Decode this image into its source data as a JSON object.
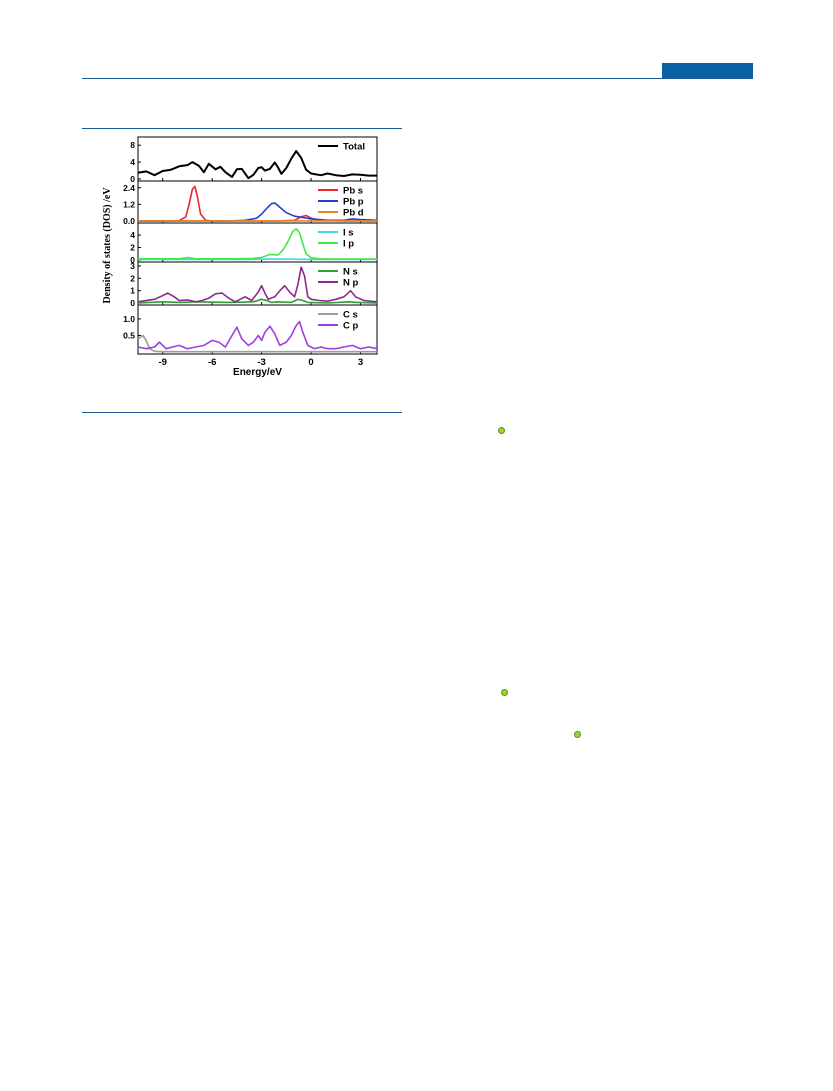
{
  "header": {
    "accent_color": "#0b5fa5"
  },
  "figure": {
    "ylabel": "Density of states (DOS) /eV",
    "xlabel": "Energy/eV"
  },
  "markers": [
    {
      "icon": "green-dot-icon"
    },
    {
      "icon": "green-dot-icon"
    },
    {
      "icon": "green-dot-icon"
    }
  ],
  "chart_data": {
    "type": "line",
    "xlabel": "Energy/eV",
    "ylabel": "Density of states (DOS) /eV",
    "xlim": [
      -10.5,
      4
    ],
    "xticks": [
      -9,
      -6,
      -3,
      0,
      3
    ],
    "grid": false,
    "panels": [
      {
        "ylim": [
          0,
          9
        ],
        "yticks": [
          0,
          4,
          8
        ],
        "yticklabels": [
          "0",
          "4",
          "8"
        ],
        "legend_position": "top-right",
        "series": [
          {
            "name": "Total",
            "color": "#000000",
            "x": [
              -10.5,
              -10,
              -9.5,
              -9,
              -8.5,
              -8,
              -7.5,
              -7.2,
              -6.8,
              -6.5,
              -6.2,
              -5.8,
              -5.5,
              -5.2,
              -4.8,
              -4.5,
              -4.2,
              -3.8,
              -3.5,
              -3.2,
              -3,
              -2.8,
              -2.5,
              -2.2,
              -2,
              -1.8,
              -1.5,
              -1.2,
              -0.9,
              -0.6,
              -0.3,
              0,
              0.3,
              0.6,
              1,
              1.5,
              2,
              2.5,
              3,
              3.5,
              4
            ],
            "y": [
              1.5,
              1.8,
              0.9,
              1.9,
              2.2,
              3,
              3.3,
              4,
              3.1,
              1.6,
              3.6,
              2.3,
              2.9,
              1.6,
              0.5,
              2.3,
              2.4,
              0.2,
              1,
              2.6,
              2.8,
              2,
              2.4,
              3.9,
              2.7,
              1.2,
              2.6,
              4.8,
              6.6,
              5,
              2.2,
              1.3,
              1.1,
              0.9,
              1.3,
              0.9,
              0.7,
              1.1,
              1,
              0.8,
              0.8
            ]
          }
        ]
      },
      {
        "ylim": [
          0,
          2.6
        ],
        "yticks": [
          0,
          1.2,
          2.4
        ],
        "yticklabels": [
          "0.0",
          "1.2",
          "2.4"
        ],
        "legend_position": "top-right",
        "series": [
          {
            "name": "Pb s",
            "color": "#e8282b",
            "x": [
              -10.5,
              -8.5,
              -8,
              -7.6,
              -7.4,
              -7.2,
              -7.05,
              -6.9,
              -6.7,
              -6.4,
              -6,
              -4,
              -2,
              -1,
              -0.6,
              -0.3,
              0,
              0.5,
              2,
              4
            ],
            "y": [
              0,
              0,
              0.02,
              0.3,
              1.2,
              2.3,
              2.5,
              1.8,
              0.5,
              0.05,
              0,
              0,
              0,
              0.05,
              0.3,
              0.4,
              0.2,
              0.05,
              0,
              0
            ]
          },
          {
            "name": "Pb p",
            "color": "#1f3fd9",
            "x": [
              -10.5,
              -5,
              -4,
              -3.3,
              -3,
              -2.7,
              -2.4,
              -2.2,
              -1.9,
              -1.5,
              -1,
              -0.5,
              0,
              1,
              2,
              2.5,
              3,
              4
            ],
            "y": [
              0,
              0,
              0.05,
              0.2,
              0.5,
              0.9,
              1.25,
              1.3,
              1,
              0.6,
              0.35,
              0.25,
              0.15,
              0.05,
              0.05,
              0.15,
              0.1,
              0.05
            ]
          },
          {
            "name": "Pb d",
            "color": "#f0851e",
            "x": [
              -10.5,
              -5,
              -2.5,
              0,
              2,
              4
            ],
            "y": [
              0.01,
              0.01,
              0.01,
              0.01,
              0.01,
              0.01
            ]
          }
        ]
      },
      {
        "ylim": [
          0,
          5.3
        ],
        "yticks": [
          0,
          2,
          4
        ],
        "yticklabels": [
          "0",
          "2",
          "4"
        ],
        "legend_position": "top-right",
        "series": [
          {
            "name": "I s",
            "color": "#3fd6f2",
            "x": [
              -10.5,
              -4,
              -2.5,
              -1.5,
              0,
              4
            ],
            "y": [
              0.1,
              0.1,
              0.15,
              0.15,
              0.1,
              0.1
            ]
          },
          {
            "name": "I p",
            "color": "#42e845",
            "x": [
              -10.5,
              -8,
              -7.5,
              -7,
              -5,
              -3.5,
              -3,
              -2.5,
              -2,
              -1.7,
              -1.4,
              -1.1,
              -0.9,
              -0.7,
              -0.5,
              -0.3,
              0,
              0.5,
              1,
              2,
              4
            ],
            "y": [
              0.2,
              0.2,
              0.4,
              0.2,
              0.2,
              0.25,
              0.4,
              0.9,
              0.8,
              1.6,
              3,
              4.6,
              5,
              4.4,
              2.6,
              1,
              0.35,
              0.2,
              0.15,
              0.15,
              0.15
            ]
          }
        ]
      },
      {
        "ylim": [
          0,
          3
        ],
        "yticks": [
          0,
          1,
          2,
          3
        ],
        "yticklabels": [
          "0",
          "1",
          "2",
          "3"
        ],
        "legend_position": "top-right",
        "series": [
          {
            "name": "N s",
            "color": "#2e9e35",
            "x": [
              -10.5,
              -9,
              -8,
              -7,
              -5,
              -3.5,
              -3,
              -2.7,
              -2.4,
              -2,
              -1.2,
              -0.8,
              -0.5,
              -0.2,
              1,
              2.3,
              2.8,
              4
            ],
            "y": [
              0,
              0.1,
              0.05,
              0.1,
              0.05,
              0.1,
              0.3,
              0.2,
              0.05,
              0.1,
              0.05,
              0.3,
              0.2,
              0.05,
              0,
              0.1,
              0.05,
              0
            ]
          },
          {
            "name": "N p",
            "color": "#8b2a8e",
            "x": [
              -10.5,
              -9.5,
              -9,
              -8.7,
              -8.3,
              -8,
              -7.5,
              -7,
              -6.6,
              -6.2,
              -5.8,
              -5.4,
              -5,
              -4.6,
              -4.3,
              -4,
              -3.6,
              -3.2,
              -3,
              -2.8,
              -2.6,
              -2.2,
              -1.9,
              -1.6,
              -1.3,
              -1,
              -0.8,
              -0.6,
              -0.4,
              -0.2,
              0,
              0.5,
              1,
              1.5,
              2,
              2.4,
              2.7,
              3.2,
              4
            ],
            "y": [
              0.1,
              0.3,
              0.6,
              0.8,
              0.5,
              0.2,
              0.25,
              0.1,
              0.2,
              0.4,
              0.75,
              0.8,
              0.4,
              0.1,
              0.3,
              0.5,
              0.2,
              0.9,
              1.4,
              0.8,
              0.3,
              0.5,
              1,
              1.4,
              0.9,
              0.5,
              1.5,
              2.9,
              2.2,
              0.5,
              0.3,
              0.2,
              0.15,
              0.3,
              0.5,
              1,
              0.5,
              0.2,
              0.1
            ]
          }
        ]
      },
      {
        "ylim": [
          0,
          1.3
        ],
        "yticks": [
          0.5,
          1.0
        ],
        "yticklabels": [
          "0.5",
          "1.0"
        ],
        "legend_position": "top-right",
        "series": [
          {
            "name": "C s",
            "color": "#9c9c9c",
            "x": [
              -10.5,
              -10.2,
              -10,
              -9.8,
              -9.5,
              -9,
              -4,
              0,
              4
            ],
            "y": [
              0.4,
              0.5,
              0.35,
              0.1,
              0.02,
              0.01,
              0.01,
              0.01,
              0.01
            ]
          },
          {
            "name": "C p",
            "color": "#a03fe0",
            "x": [
              -10.5,
              -10,
              -9.5,
              -9.2,
              -8.8,
              -8.4,
              -8,
              -7.5,
              -7,
              -6.5,
              -6,
              -5.6,
              -5.2,
              -4.8,
              -4.5,
              -4.2,
              -3.8,
              -3.5,
              -3.2,
              -3,
              -2.8,
              -2.5,
              -2.2,
              -1.9,
              -1.5,
              -1.2,
              -0.9,
              -0.7,
              -0.5,
              -0.2,
              0.2,
              0.6,
              1,
              1.5,
              2,
              2.5,
              3,
              3.5,
              4
            ],
            "y": [
              0.15,
              0.1,
              0.15,
              0.3,
              0.1,
              0.15,
              0.2,
              0.1,
              0.15,
              0.2,
              0.35,
              0.3,
              0.15,
              0.5,
              0.75,
              0.4,
              0.2,
              0.3,
              0.5,
              0.35,
              0.6,
              0.78,
              0.55,
              0.2,
              0.3,
              0.5,
              0.8,
              0.92,
              0.6,
              0.2,
              0.1,
              0.15,
              0.1,
              0.1,
              0.15,
              0.2,
              0.1,
              0.15,
              0.1
            ]
          }
        ]
      }
    ]
  }
}
